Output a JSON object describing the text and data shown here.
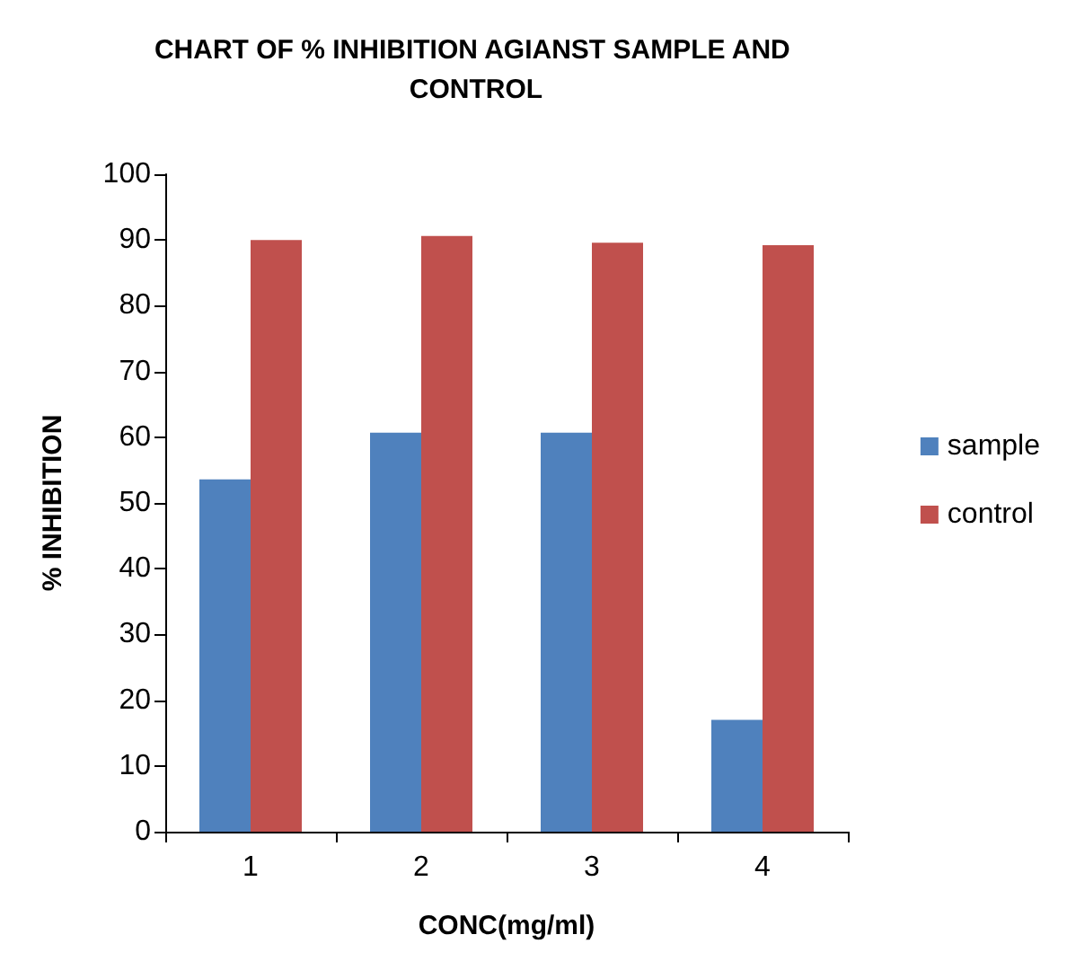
{
  "chart_data": {
    "type": "bar",
    "title": "CHART OF % INHIBITION AGIANST SAMPLE AND CONTROL",
    "xlabel": "CONC(mg/ml)",
    "ylabel": "% INHIBITION",
    "categories": [
      "1",
      "2",
      "3",
      "4"
    ],
    "series": [
      {
        "name": "sample",
        "color": "#4f81bd",
        "values": [
          53.6,
          60.7,
          60.7,
          17.0
        ]
      },
      {
        "name": "control",
        "color": "#c0504d",
        "values": [
          90.0,
          90.6,
          89.6,
          89.2
        ]
      }
    ],
    "ylim": [
      0,
      100
    ],
    "yticks": [
      0,
      10,
      20,
      30,
      40,
      50,
      60,
      70,
      80,
      90,
      100
    ],
    "grid": false,
    "legend": "right"
  }
}
